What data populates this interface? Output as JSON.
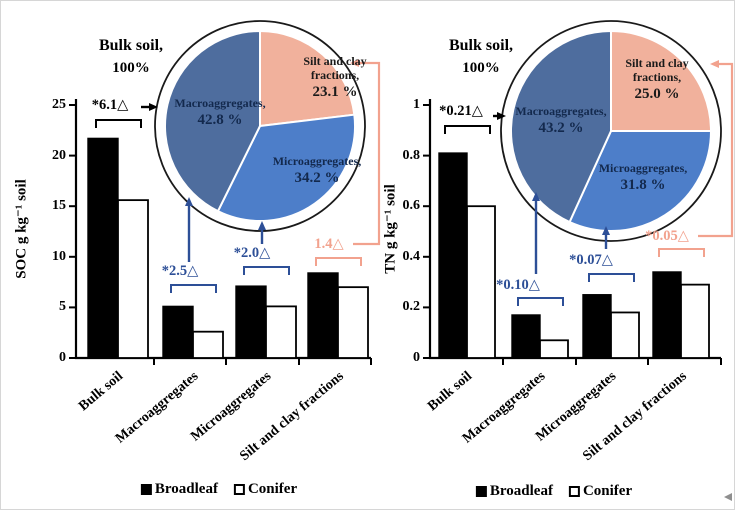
{
  "palette": {
    "bar_broadleaf": "#000000",
    "bar_conifer": "#ffffff",
    "macroaggregates_slice": "#4e6d9e",
    "microaggregates_slice": "#4d7ec9",
    "silt_clay_slice": "#f1b19c",
    "blue_annotation": "#2d4f97",
    "salmon_annotation": "#f2a28e",
    "pie_label_text": "#13294d",
    "axis": "#000000"
  },
  "legend": {
    "items": [
      {
        "label": "Broadleaf",
        "fill": "#000000"
      },
      {
        "label": "Conifer",
        "fill": "#ffffff"
      }
    ]
  },
  "chart_data": [
    {
      "type": "bar",
      "panel": "left",
      "ylabel": "SOC g kg⁻¹ soil",
      "ylim": [
        0,
        25
      ],
      "yticks": [
        0,
        5,
        10,
        15,
        20,
        25
      ],
      "categories": [
        "Bulk soil",
        "Macroaggregates",
        "Microaggregates",
        "Silt and clay fractions"
      ],
      "series": [
        {
          "name": "Broadleaf",
          "values": [
            21.7,
            5.1,
            7.1,
            8.4
          ]
        },
        {
          "name": "Conifer",
          "values": [
            15.6,
            2.6,
            5.1,
            7.0
          ]
        }
      ],
      "annotations": [
        {
          "text": "*6.1△",
          "color": "#000000"
        },
        {
          "text": "*2.5△",
          "color": "#2d4f97"
        },
        {
          "text": "*2.0△",
          "color": "#2d4f97"
        },
        {
          "text": "1.4△",
          "color": "#f2a28e"
        }
      ],
      "pie": {
        "type": "pie",
        "header_line1": "Bulk soil,",
        "header_line2": "100%",
        "slices": [
          {
            "label": "Macroaggregates,",
            "value_label": "42.8 %",
            "value": 42.8,
            "color": "#4e6d9e"
          },
          {
            "label": "Microaggregates,",
            "value_label": "34.2 %",
            "value": 34.2,
            "color": "#4d7ec9"
          },
          {
            "label": "Silt and clay fractions,",
            "value_label": "23.1 %",
            "value": 23.1,
            "color": "#f1b19c"
          }
        ]
      }
    },
    {
      "type": "bar",
      "panel": "right",
      "ylabel": "TN g kg⁻¹ soil",
      "ylim": [
        0,
        1
      ],
      "yticks": [
        0,
        0.2,
        0.4,
        0.6,
        0.8,
        1
      ],
      "categories": [
        "Bulk soil",
        "Macroaggregates",
        "Microaggregates",
        "Silt and clay fractions"
      ],
      "series": [
        {
          "name": "Broadleaf",
          "values": [
            0.81,
            0.17,
            0.25,
            0.34
          ]
        },
        {
          "name": "Conifer",
          "values": [
            0.6,
            0.07,
            0.18,
            0.29
          ]
        }
      ],
      "annotations": [
        {
          "text": "*0.21△",
          "color": "#000000"
        },
        {
          "text": "*0.10△",
          "color": "#2d4f97"
        },
        {
          "text": "*0.07△",
          "color": "#2d4f97"
        },
        {
          "text": "*0.05△",
          "color": "#f2a28e"
        }
      ],
      "pie": {
        "type": "pie",
        "header_line1": "Bulk soil,",
        "header_line2": "100%",
        "slices": [
          {
            "label": "Macroaggregates,",
            "value_label": "43.2 %",
            "value": 43.2,
            "color": "#4e6d9e"
          },
          {
            "label": "Microaggregates,",
            "value_label": "31.8 %",
            "value": 31.8,
            "color": "#4d7ec9"
          },
          {
            "label": "Silt and clay fractions,",
            "value_label": "25.0 %",
            "value": 25.0,
            "color": "#f1b19c"
          }
        ]
      }
    }
  ]
}
